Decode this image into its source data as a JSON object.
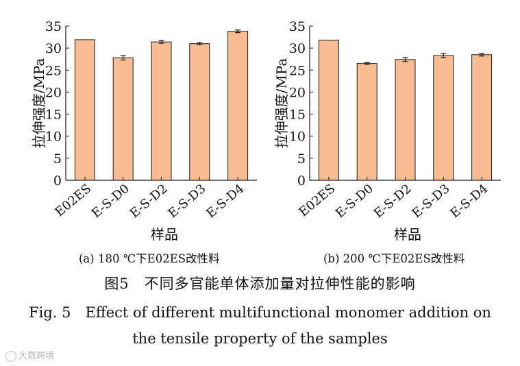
{
  "chart_data": [
    {
      "type": "bar",
      "categories": [
        "E02ES",
        "E-S-D0",
        "E-S-D2",
        "E-S-D3",
        "E-S-D4"
      ],
      "values": [
        31.9,
        27.8,
        31.4,
        31.0,
        33.8
      ],
      "errors": [
        0.0,
        0.5,
        0.3,
        0.25,
        0.3
      ],
      "xlabel": "样品",
      "ylabel": "拉伸强度/MPa",
      "ylim": [
        0,
        35
      ],
      "yticks": [
        0,
        5,
        10,
        15,
        20,
        25,
        30,
        35
      ],
      "caption": "(a) 180 ℃下E02ES改性料"
    },
    {
      "type": "bar",
      "categories": [
        "E02ES",
        "E-S-D0",
        "E-S-D2",
        "E-S-D3",
        "E-S-D4"
      ],
      "values": [
        31.8,
        26.5,
        27.4,
        28.3,
        28.5
      ],
      "errors": [
        0.0,
        0.2,
        0.45,
        0.45,
        0.3
      ],
      "xlabel": "样品",
      "ylabel": "拉伸强度/MPa",
      "ylim": [
        0,
        35
      ],
      "yticks": [
        0,
        5,
        10,
        15,
        20,
        25,
        30,
        35
      ],
      "caption": "(b) 200 ℃下E02ES改性料"
    }
  ],
  "figure_caption_cn": "图5　不同多官能单体添加量对拉伸性能的影响",
  "figure_caption_en_line1": "Fig. 5　Effect of different multifunctional monomer addition on",
  "figure_caption_en_line2": "the tensile property of the samples",
  "watermark": "大数跨境",
  "colors": {
    "bar": "#F7BC92",
    "edge": "#1a1a1a"
  }
}
